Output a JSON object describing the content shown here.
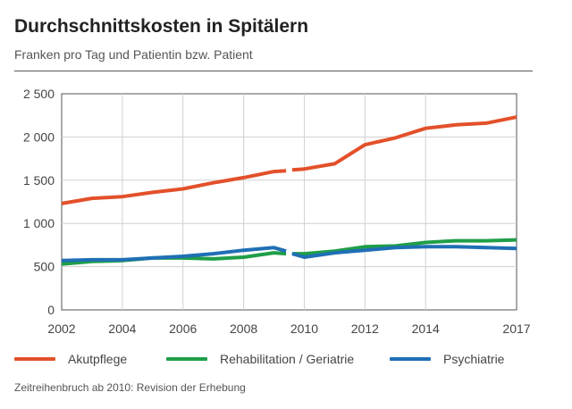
{
  "chart_data": {
    "type": "line",
    "title": "Durchschnittskosten in Spitälern",
    "subtitle": "Franken pro Tag und Patientin bzw. Patient",
    "note": "Zeitreihenbruch ab 2010: Revision der Erhebung",
    "xlabel": "",
    "ylabel": "",
    "xlim": [
      2002,
      2017
    ],
    "ylim": [
      0,
      2500
    ],
    "x_ticks": [
      "2002",
      "2004",
      "2006",
      "2008",
      "2010",
      "2012",
      "2014",
      "2017"
    ],
    "y_ticks": [
      "0",
      "500",
      "1 000",
      "1 500",
      "2 000",
      "2 500"
    ],
    "grid": true,
    "legend_position": "bottom",
    "series_break": "2009-2010",
    "series": [
      {
        "name": "Akutpflege",
        "color": "#e3502a",
        "segments": [
          {
            "x": [
              2002,
              2003,
              2004,
              2005,
              2006,
              2007,
              2008,
              2009,
              2009.4
            ],
            "y": [
              1230,
              1290,
              1310,
              1360,
              1400,
              1470,
              1530,
              1600,
              1610
            ]
          },
          {
            "x": [
              2009.6,
              2010,
              2011,
              2012,
              2013,
              2014,
              2015,
              2016,
              2017
            ],
            "y": [
              1620,
              1630,
              1690,
              1910,
              1990,
              2100,
              2140,
              2160,
              2230
            ]
          }
        ]
      },
      {
        "name": "Rehabilitation / Geriatrie",
        "color": "#1f9e48",
        "segments": [
          {
            "x": [
              2002,
              2003,
              2004,
              2005,
              2006,
              2007,
              2008,
              2009,
              2009.4
            ],
            "y": [
              530,
              560,
              570,
              600,
              600,
              590,
              610,
              660,
              650
            ]
          },
          {
            "x": [
              2009.6,
              2010,
              2011,
              2012,
              2013,
              2014,
              2015,
              2016,
              2017
            ],
            "y": [
              650,
              650,
              680,
              730,
              740,
              780,
              800,
              800,
              810
            ]
          }
        ]
      },
      {
        "name": "Psychiatrie",
        "color": "#1f6fb5",
        "segments": [
          {
            "x": [
              2002,
              2003,
              2004,
              2005,
              2006,
              2007,
              2008,
              2009,
              2009.4
            ],
            "y": [
              570,
              580,
              580,
              600,
              620,
              650,
              690,
              720,
              680
            ]
          },
          {
            "x": [
              2009.6,
              2010,
              2011,
              2012,
              2013,
              2014,
              2015,
              2016,
              2017
            ],
            "y": [
              650,
              610,
              660,
              690,
              720,
              730,
              730,
              720,
              710
            ]
          }
        ]
      }
    ]
  },
  "colors": {
    "grid": "#d0d0d0",
    "axis": "#555555",
    "break": "#ffffff"
  }
}
